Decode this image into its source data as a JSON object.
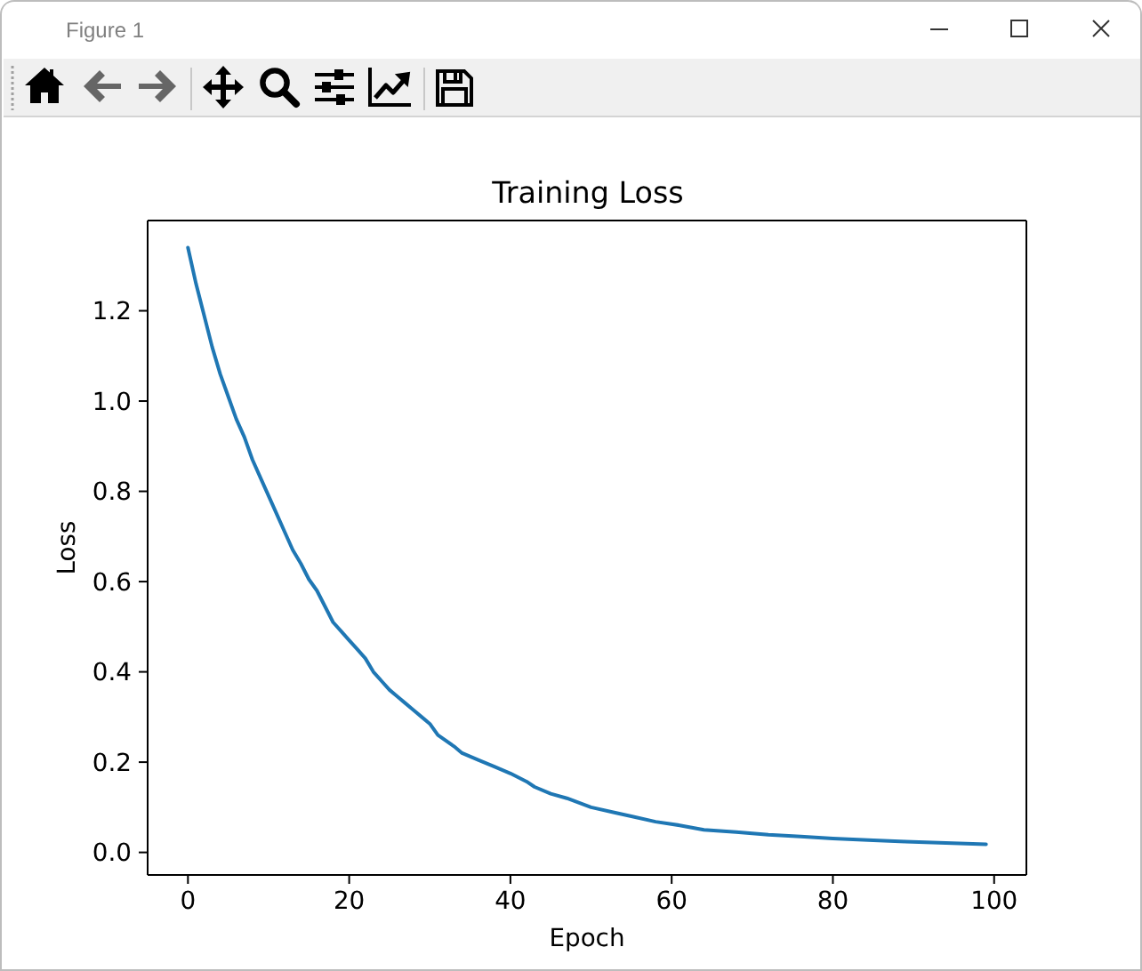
{
  "chart_data": {
    "type": "line",
    "title": "Training Loss",
    "xlabel": "Epoch",
    "ylabel": "Loss",
    "annotations": [
      "Figure 1"
    ],
    "x": [
      0,
      1,
      2,
      3,
      4,
      5,
      6,
      7,
      8,
      9,
      10,
      11,
      12,
      13,
      14,
      15,
      16,
      17,
      18,
      19,
      20,
      21,
      22,
      23,
      24,
      25,
      26,
      27,
      28,
      29,
      30,
      31,
      33,
      34,
      36,
      38,
      40,
      42,
      43,
      45,
      47,
      50,
      53,
      55,
      58,
      61,
      64,
      68,
      72,
      76,
      80,
      85,
      89,
      94,
      99
    ],
    "series": [
      {
        "color": "#1f77b4",
        "values": [
          1.34,
          1.26,
          1.19,
          1.12,
          1.06,
          1.01,
          0.96,
          0.92,
          0.87,
          0.83,
          0.79,
          0.75,
          0.71,
          0.67,
          0.64,
          0.605,
          0.58,
          0.545,
          0.51,
          0.49,
          0.47,
          0.45,
          0.43,
          0.4,
          0.38,
          0.36,
          0.345,
          0.33,
          0.315,
          0.3,
          0.285,
          0.26,
          0.235,
          0.22,
          0.205,
          0.19,
          0.175,
          0.157,
          0.145,
          0.13,
          0.12,
          0.1,
          0.088,
          0.08,
          0.068,
          0.06,
          0.05,
          0.045,
          0.039,
          0.035,
          0.031,
          0.027,
          0.024,
          0.021,
          0.018
        ]
      }
    ],
    "xlim": [
      -5,
      104
    ],
    "xticks": [
      0,
      20,
      40,
      60,
      80,
      100
    ],
    "ylim": [
      -0.05,
      1.4
    ],
    "yticks": [
      {
        "value": 0,
        "label": "0.0"
      },
      0.2,
      0.4,
      0.6,
      0.8,
      {
        "value": 1,
        "label": "1.0"
      },
      1.2
    ]
  }
}
